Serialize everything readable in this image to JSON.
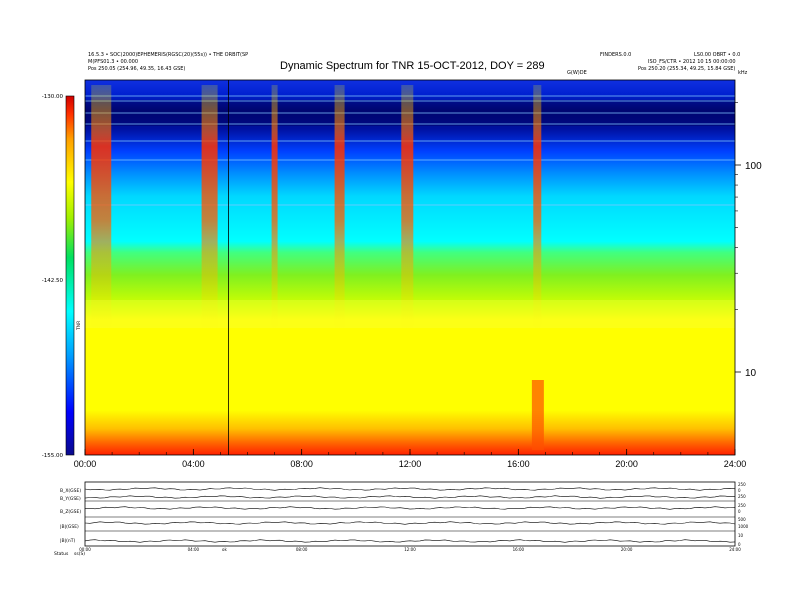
{
  "chart_data": {
    "type": "heatmap",
    "title": "Dynamic Spectrum for TNR 15-OCT-2012, DOY = 289",
    "x_ticks": [
      "00:00",
      "04:00",
      "08:00",
      "12:00",
      "16:00",
      "20:00",
      "24:00"
    ],
    "x_range_hours": [
      0,
      24
    ],
    "y_scale": "log",
    "y_ticks": [
      "100",
      "10"
    ],
    "colorbar": {
      "min": -155.0,
      "max": -130.0,
      "tick_labels": [
        "-130.00",
        "-142.50",
        "-155.00"
      ],
      "axis_label": "TNR",
      "colors": [
        "#0a0a8c",
        "#0000ff",
        "#00a0ff",
        "#00ffff",
        "#00e060",
        "#a0f000",
        "#ffff00",
        "#ffa000",
        "#ff3000",
        "#d00000"
      ]
    },
    "vertical_marker_hour": 5.3,
    "bursts_hours": [
      0.6,
      4.6,
      7.0,
      9.4,
      11.9,
      16.7
    ],
    "header": {
      "left_line1": "16.5.3 • SOC(2000)EPHEMERIS(RGSC(20)(55s)) • THE ORBIT(SP",
      "left_line2": "M(PFS01.3 • 00.000",
      "left_line3": "Pos 250.05 (254.96, 49.35, 16.43 GSE)",
      "right_line1": "FINDERS.0.0",
      "right_line2": "LS0.00 OBRT • 0.0",
      "right_line3": "ISO_FS/CTR • 2012 10 15 00:00:00",
      "right_line4": "Pos 250.20 (255.34, 49.25, 15.84 GSE)",
      "center_small": "G(W)DE",
      "right_small": "kHz"
    },
    "strip_chart": {
      "row_labels": [
        "B_X(GSE)",
        "B_Y(GSE)",
        "B_Z(GSE)",
        "|B|(GSE)",
        "|B|(nT)"
      ],
      "right_scale": [
        "250",
        "0",
        "250",
        "250",
        "0",
        "500",
        "1000",
        "10",
        "0"
      ],
      "x_ticks": [
        "00:00",
        "04:00",
        "08:00",
        "12:00",
        "16:00",
        "20:00",
        "24:00"
      ],
      "footer_left": "Status",
      "footer_left2": "ss(S)",
      "footer_mid": "ok"
    }
  }
}
